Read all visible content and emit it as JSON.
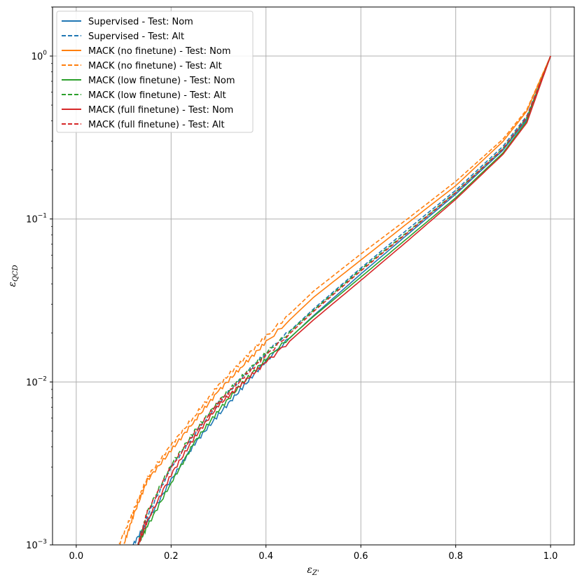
{
  "chart_data": {
    "type": "line",
    "title": "",
    "xlabel": "ε_{Z'}",
    "ylabel": "ε_{QCD}",
    "xlim": [
      -0.05,
      1.05
    ],
    "ylim": [
      0.001,
      2.0
    ],
    "yscale": "log",
    "grid": true,
    "legend_position": "top-left",
    "x_ticks": [
      0.0,
      0.2,
      0.4,
      0.6,
      0.8,
      1.0
    ],
    "x_tick_labels": [
      "0.0",
      "0.2",
      "0.4",
      "0.6",
      "0.8",
      "1.0"
    ],
    "y_ticks": [
      0.001,
      0.01,
      0.1,
      1
    ],
    "y_tick_labels": [
      {
        "base": "10",
        "exp": "−3"
      },
      {
        "base": "10",
        "exp": "−2"
      },
      {
        "base": "10",
        "exp": "−1"
      },
      {
        "base": "10",
        "exp": "0"
      }
    ],
    "series": [
      {
        "name": "Supervised - Test: Nom",
        "color": "#1f77b4",
        "dash": false,
        "x": [
          0.12,
          0.15,
          0.2,
          0.25,
          0.3,
          0.35,
          0.4,
          0.5,
          0.6,
          0.7,
          0.8,
          0.9,
          0.95,
          1.0
        ],
        "y": [
          0.001,
          0.0014,
          0.0025,
          0.0042,
          0.0063,
          0.0092,
          0.0135,
          0.0255,
          0.046,
          0.081,
          0.142,
          0.265,
          0.41,
          1.0
        ]
      },
      {
        "name": "Supervised - Test: Alt",
        "color": "#1f77b4",
        "dash": true,
        "x": [
          0.13,
          0.15,
          0.2,
          0.25,
          0.3,
          0.35,
          0.4,
          0.5,
          0.6,
          0.7,
          0.8,
          0.9,
          0.95,
          1.0
        ],
        "y": [
          0.001,
          0.0015,
          0.003,
          0.0048,
          0.0074,
          0.0107,
          0.015,
          0.028,
          0.05,
          0.087,
          0.15,
          0.28,
          0.43,
          1.0
        ]
      },
      {
        "name": "MACK (no finetune) - Test: Nom",
        "color": "#ff7f0e",
        "dash": false,
        "x": [
          0.1,
          0.12,
          0.15,
          0.2,
          0.25,
          0.3,
          0.35,
          0.4,
          0.5,
          0.6,
          0.7,
          0.8,
          0.9,
          0.95,
          1.0
        ],
        "y": [
          0.001,
          0.0015,
          0.0025,
          0.0038,
          0.0058,
          0.0088,
          0.0125,
          0.0175,
          0.033,
          0.056,
          0.095,
          0.16,
          0.3,
          0.46,
          1.0
        ]
      },
      {
        "name": "MACK (no finetune) - Test: Alt",
        "color": "#ff7f0e",
        "dash": true,
        "x": [
          0.09,
          0.12,
          0.15,
          0.2,
          0.25,
          0.3,
          0.35,
          0.4,
          0.5,
          0.6,
          0.7,
          0.8,
          0.9,
          0.95,
          1.0
        ],
        "y": [
          0.001,
          0.0016,
          0.0026,
          0.0041,
          0.0062,
          0.0095,
          0.0135,
          0.019,
          0.036,
          0.061,
          0.101,
          0.17,
          0.31,
          0.47,
          1.0
        ]
      },
      {
        "name": "MACK (low finetune) - Test: Nom",
        "color": "#2ca02c",
        "dash": false,
        "x": [
          0.13,
          0.15,
          0.2,
          0.25,
          0.3,
          0.35,
          0.4,
          0.5,
          0.6,
          0.7,
          0.8,
          0.9,
          0.95,
          1.0
        ],
        "y": [
          0.001,
          0.0013,
          0.0024,
          0.0043,
          0.0067,
          0.0098,
          0.0138,
          0.0252,
          0.044,
          0.077,
          0.135,
          0.255,
          0.4,
          1.0
        ]
      },
      {
        "name": "MACK (low finetune) - Test: Alt",
        "color": "#2ca02c",
        "dash": true,
        "x": [
          0.13,
          0.15,
          0.2,
          0.25,
          0.3,
          0.35,
          0.4,
          0.5,
          0.6,
          0.7,
          0.8,
          0.9,
          0.95,
          1.0
        ],
        "y": [
          0.001,
          0.0016,
          0.0031,
          0.005,
          0.0076,
          0.0108,
          0.015,
          0.0275,
          0.049,
          0.084,
          0.146,
          0.272,
          0.42,
          1.0
        ]
      },
      {
        "name": "MACK (full finetune) - Test: Nom",
        "color": "#d62728",
        "dash": false,
        "x": [
          0.13,
          0.15,
          0.2,
          0.25,
          0.3,
          0.35,
          0.4,
          0.5,
          0.6,
          0.7,
          0.8,
          0.9,
          0.95,
          1.0
        ],
        "y": [
          0.001,
          0.0014,
          0.0027,
          0.0046,
          0.0072,
          0.0098,
          0.0132,
          0.024,
          0.042,
          0.074,
          0.132,
          0.25,
          0.39,
          1.0
        ]
      },
      {
        "name": "MACK (full finetune) - Test: Alt",
        "color": "#d62728",
        "dash": true,
        "x": [
          0.13,
          0.15,
          0.2,
          0.25,
          0.3,
          0.35,
          0.4,
          0.5,
          0.6,
          0.7,
          0.8,
          0.9,
          0.95,
          1.0
        ],
        "y": [
          0.001,
          0.0016,
          0.003,
          0.0049,
          0.0075,
          0.0105,
          0.0145,
          0.027,
          0.048,
          0.083,
          0.145,
          0.27,
          0.42,
          1.0
        ]
      }
    ]
  }
}
